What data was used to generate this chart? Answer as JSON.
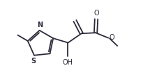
{
  "line_color": "#2a2a3a",
  "bg_color": "#ffffff",
  "line_width": 1.3,
  "font_size": 6.5,
  "figsize": [
    2.25,
    1.21
  ],
  "dpi": 100,
  "xlim": [
    0,
    2.25
  ],
  "ylim": [
    0,
    1.21
  ]
}
